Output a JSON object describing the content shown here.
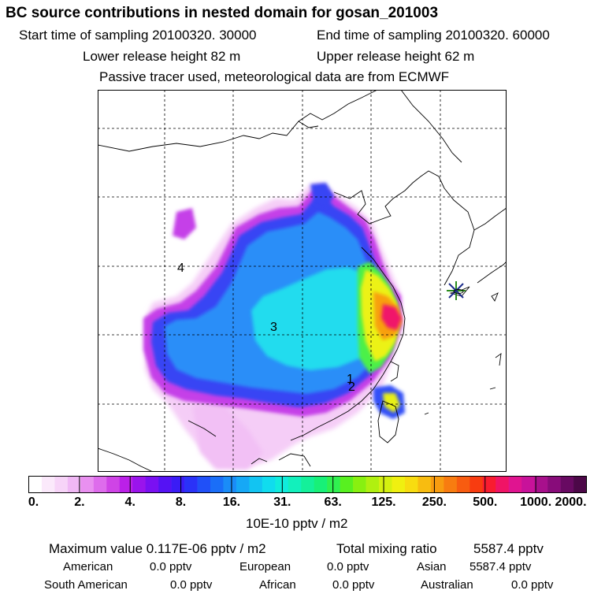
{
  "header": {
    "title": "BC  source contributions in nested domain for gosan_201003",
    "start_time": "Start time of sampling 20100320. 30000",
    "end_time": "End time of sampling 20100320. 60000",
    "lower_release": "Lower release height   82 m",
    "upper_release": "Upper release height   62 m",
    "tracer_note": "Passive tracer used, meteorological data are from ECMWF"
  },
  "map": {
    "receptor": "star-marker",
    "site_labels": [
      {
        "text": "4"
      },
      {
        "text": "3"
      },
      {
        "text": "1"
      },
      {
        "text": "2"
      }
    ]
  },
  "colorbar": {
    "ticks": [
      "0.",
      "2.",
      "4.",
      "8.",
      "16.",
      "31.",
      "63.",
      "125.",
      "250.",
      "500.",
      "1000.",
      "2000."
    ],
    "colors": [
      "#ffffff",
      "#fbe9fb",
      "#f7d4f8",
      "#f0b8f5",
      "#e990f0",
      "#de6cec",
      "#cf44e6",
      "#bb20e8",
      "#9a14ec",
      "#7a10f2",
      "#5512f4",
      "#3a1cf6",
      "#2a32f8",
      "#2050f8",
      "#1a6ef8",
      "#1a8cf8",
      "#16a8f6",
      "#12c4f2",
      "#10dcee",
      "#10ecdc",
      "#12f0bc",
      "#14f09a",
      "#18f078",
      "#30f050",
      "#58f020",
      "#88f010",
      "#b0f010",
      "#d4f010",
      "#f0f010",
      "#f8dc10",
      "#f8bc10",
      "#f89c10",
      "#f87c10",
      "#f85c10",
      "#f83c10",
      "#f81c30",
      "#f01466",
      "#e01490",
      "#c8129a",
      "#a8108c",
      "#880c7a",
      "#680a62",
      "#4c0848"
    ],
    "unit": "10E-10 pptv / m2"
  },
  "summary": {
    "max_value": "Maximum value  0.117E-06 pptv / m2",
    "total": "Total mixing ratio",
    "total_value": "5587.4 pptv",
    "american_label": "American",
    "american_value": "0.0 pptv",
    "european_label": "European",
    "european_value": "0.0 pptv",
    "asian_label": "Asian",
    "asian_value": "5587.4 pptv",
    "southamerican_label": "South American",
    "southamerican_value": "0.0 pptv",
    "african_label": "African",
    "african_value": "0.0 pptv",
    "australian_label": "Australian",
    "australian_value": "0.0 pptv"
  }
}
